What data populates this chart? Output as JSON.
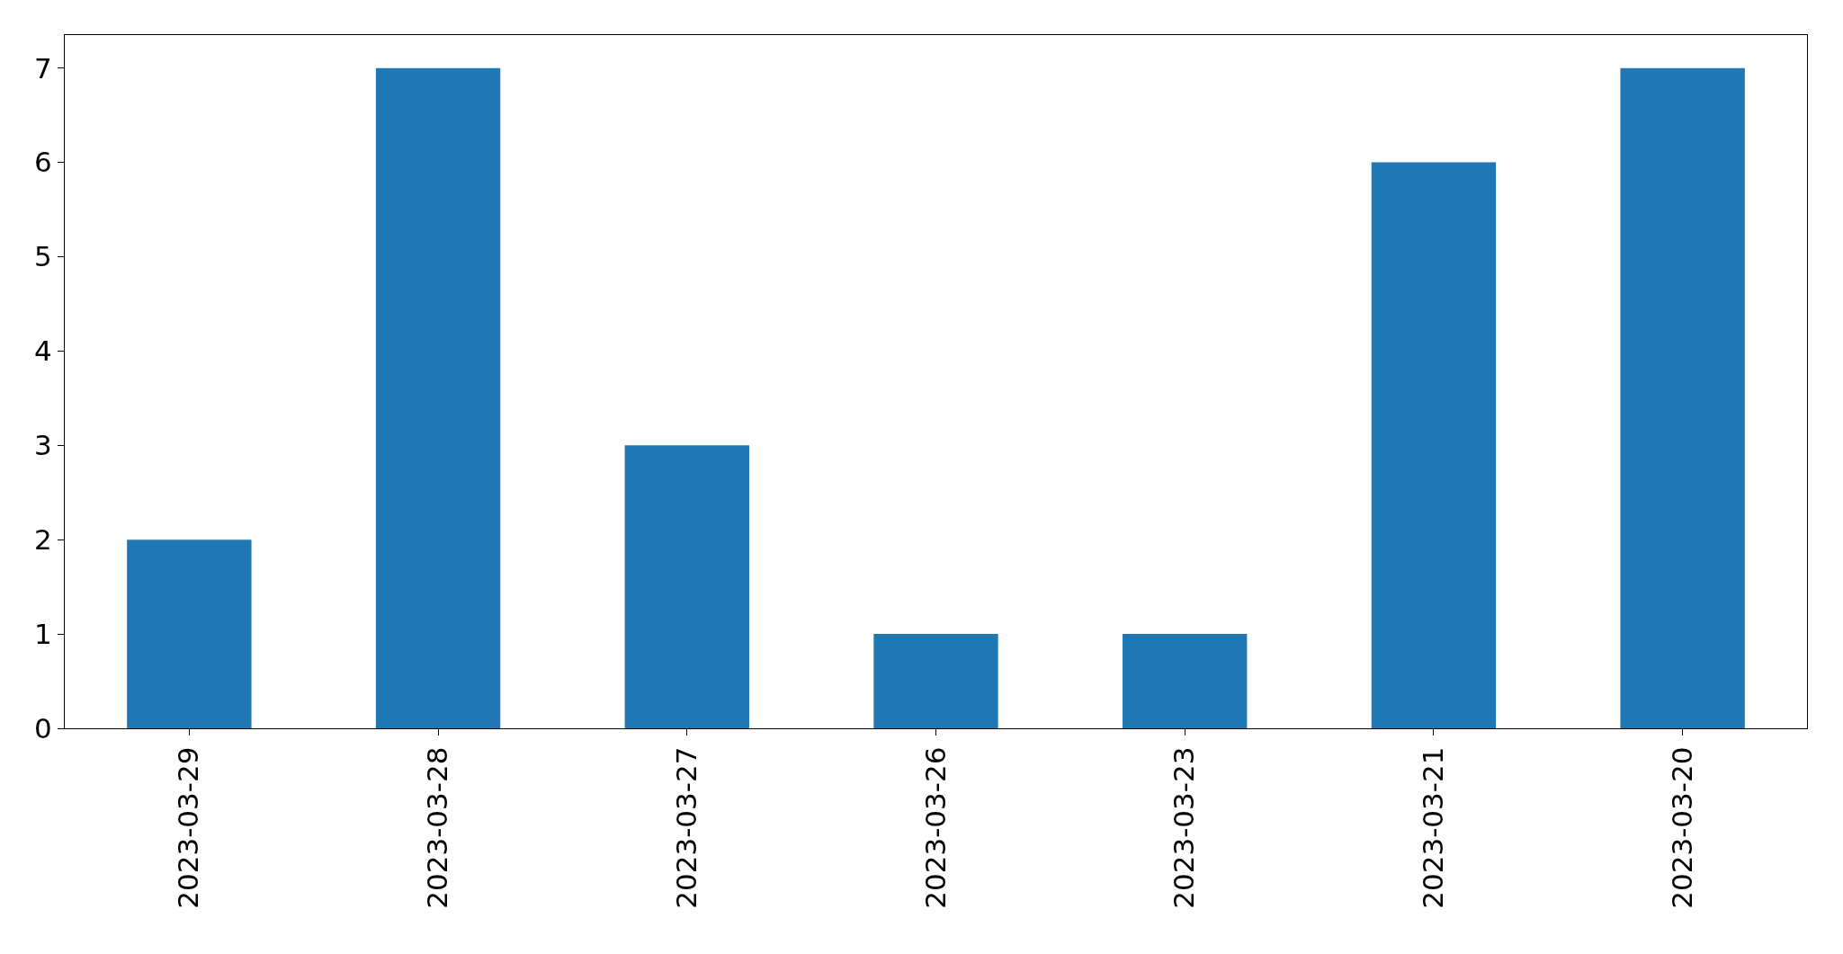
{
  "chart_data": {
    "type": "bar",
    "categories": [
      "2023-03-29",
      "2023-03-28",
      "2023-03-27",
      "2023-03-26",
      "2023-03-23",
      "2023-03-21",
      "2023-03-20"
    ],
    "values": [
      2,
      7,
      3,
      1,
      1,
      6,
      7
    ],
    "color": "#1f77b4",
    "ylim": [
      0,
      7.35
    ],
    "yticks": [
      0,
      1,
      2,
      3,
      4,
      5,
      6,
      7
    ],
    "grid": false,
    "legend": false
  }
}
